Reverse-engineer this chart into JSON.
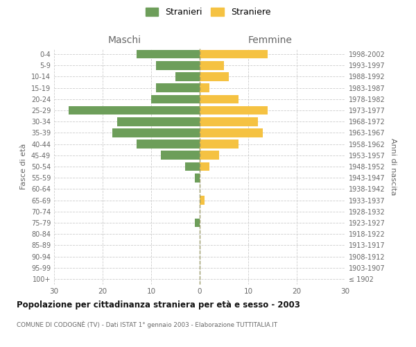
{
  "age_groups": [
    "100+",
    "95-99",
    "90-94",
    "85-89",
    "80-84",
    "75-79",
    "70-74",
    "65-69",
    "60-64",
    "55-59",
    "50-54",
    "45-49",
    "40-44",
    "35-39",
    "30-34",
    "25-29",
    "20-24",
    "15-19",
    "10-14",
    "5-9",
    "0-4"
  ],
  "birth_years": [
    "≤ 1902",
    "1903-1907",
    "1908-1912",
    "1913-1917",
    "1918-1922",
    "1923-1927",
    "1928-1932",
    "1933-1937",
    "1938-1942",
    "1943-1947",
    "1948-1952",
    "1953-1957",
    "1958-1962",
    "1963-1967",
    "1968-1972",
    "1973-1977",
    "1978-1982",
    "1983-1987",
    "1988-1992",
    "1993-1997",
    "1998-2002"
  ],
  "males": [
    0,
    0,
    0,
    0,
    0,
    1,
    0,
    0,
    0,
    1,
    3,
    8,
    13,
    18,
    17,
    27,
    10,
    9,
    5,
    9,
    13
  ],
  "females": [
    0,
    0,
    0,
    0,
    0,
    0,
    0,
    1,
    0,
    0,
    2,
    4,
    8,
    13,
    12,
    14,
    8,
    2,
    6,
    5,
    14
  ],
  "male_color": "#6d9e5a",
  "female_color": "#f5c242",
  "title": "Popolazione per cittadinanza straniera per età e sesso - 2003",
  "subtitle": "COMUNE DI CODOGNÈ (TV) - Dati ISTAT 1° gennaio 2003 - Elaborazione TUTTITALIA.IT",
  "header_left": "Maschi",
  "header_right": "Femmine",
  "ylabel_left": "Fasce di età",
  "ylabel_right": "Anni di nascita",
  "legend_male": "Stranieri",
  "legend_female": "Straniere",
  "xlim": 30,
  "background_color": "#ffffff",
  "grid_color": "#cccccc",
  "text_color": "#666666",
  "title_color": "#111111",
  "dashed_line_color": "#999966"
}
